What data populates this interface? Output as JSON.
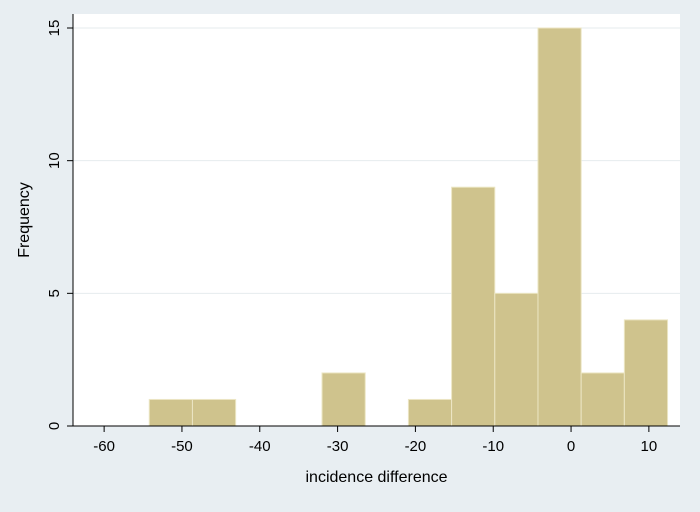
{
  "chart_data": {
    "type": "bar",
    "subtype": "histogram",
    "xlabel": "incidence difference",
    "ylabel": "Frequency",
    "xlim": [
      -64,
      14
    ],
    "ylim": [
      0,
      15
    ],
    "x_ticks": [
      -60,
      -50,
      -40,
      -30,
      -20,
      -10,
      0,
      10
    ],
    "y_ticks": [
      0,
      5,
      10,
      15
    ],
    "grid": true,
    "bin_width": 5.55,
    "bins": [
      {
        "start": -54.2,
        "end": -48.65,
        "value": 1
      },
      {
        "start": -48.65,
        "end": -43.1,
        "value": 1
      },
      {
        "start": -43.1,
        "end": -37.55,
        "value": 0
      },
      {
        "start": -37.55,
        "end": -32.0,
        "value": 0
      },
      {
        "start": -32.0,
        "end": -26.45,
        "value": 2
      },
      {
        "start": -26.45,
        "end": -20.9,
        "value": 0
      },
      {
        "start": -20.9,
        "end": -15.35,
        "value": 1
      },
      {
        "start": -15.35,
        "end": -9.8,
        "value": 9
      },
      {
        "start": -9.8,
        "end": -4.25,
        "value": 5
      },
      {
        "start": -4.25,
        "end": 1.3,
        "value": 15
      },
      {
        "start": 1.3,
        "end": 6.85,
        "value": 2
      },
      {
        "start": 6.85,
        "end": 12.4,
        "value": 4
      }
    ],
    "colors": {
      "bar_fill": "#cfc38d",
      "bar_stroke": "#ece6c4",
      "plot_bg": "#ffffff",
      "outer_bg": "#e8eef2",
      "grid": "#e6ebee",
      "axis": "#000000"
    }
  }
}
